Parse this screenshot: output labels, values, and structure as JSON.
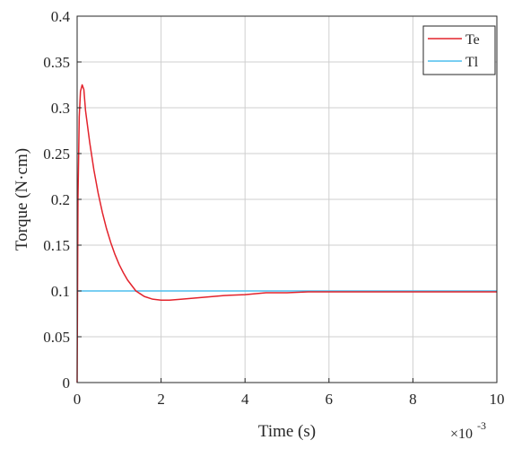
{
  "chart_data": {
    "type": "line",
    "xlabel": "Time (s)",
    "ylabel": "Torque (N·cm)",
    "x_exponent_label": "×10",
    "x_exponent_power": "-3",
    "x_scale": 0.001,
    "xlim": [
      0,
      10
    ],
    "ylim": [
      0,
      0.4
    ],
    "x_ticks": [
      "0",
      "2",
      "4",
      "6",
      "8",
      "10"
    ],
    "y_ticks": [
      "0",
      "0.05",
      "0.1",
      "0.15",
      "0.2",
      "0.25",
      "0.3",
      "0.35",
      "0.4"
    ],
    "grid": true,
    "legend_position": "top-right",
    "series": [
      {
        "name": "Te",
        "color": "#e3232c",
        "x": [
          0.0,
          0.02,
          0.05,
          0.08,
          0.12,
          0.16,
          0.2,
          0.3,
          0.4,
          0.5,
          0.6,
          0.7,
          0.8,
          0.9,
          1.0,
          1.1,
          1.2,
          1.3,
          1.4,
          1.5,
          1.6,
          1.8,
          2.0,
          2.2,
          2.5,
          3.0,
          3.5,
          4.0,
          4.5,
          5.0,
          5.5,
          6.0,
          6.5,
          7.0,
          7.5,
          8.0,
          8.5,
          9.0,
          9.5,
          10.0
        ],
        "y": [
          0.0,
          0.2,
          0.29,
          0.318,
          0.325,
          0.32,
          0.297,
          0.262,
          0.232,
          0.207,
          0.186,
          0.168,
          0.153,
          0.14,
          0.129,
          0.12,
          0.112,
          0.106,
          0.1,
          0.097,
          0.094,
          0.091,
          0.09,
          0.09,
          0.091,
          0.093,
          0.095,
          0.096,
          0.098,
          0.098,
          0.099,
          0.099,
          0.099,
          0.099,
          0.099,
          0.099,
          0.099,
          0.099,
          0.099,
          0.099
        ]
      },
      {
        "name": "Tl",
        "color": "#4dbeee",
        "x": [
          0.0,
          10.0
        ],
        "y": [
          0.1,
          0.1
        ]
      }
    ]
  }
}
